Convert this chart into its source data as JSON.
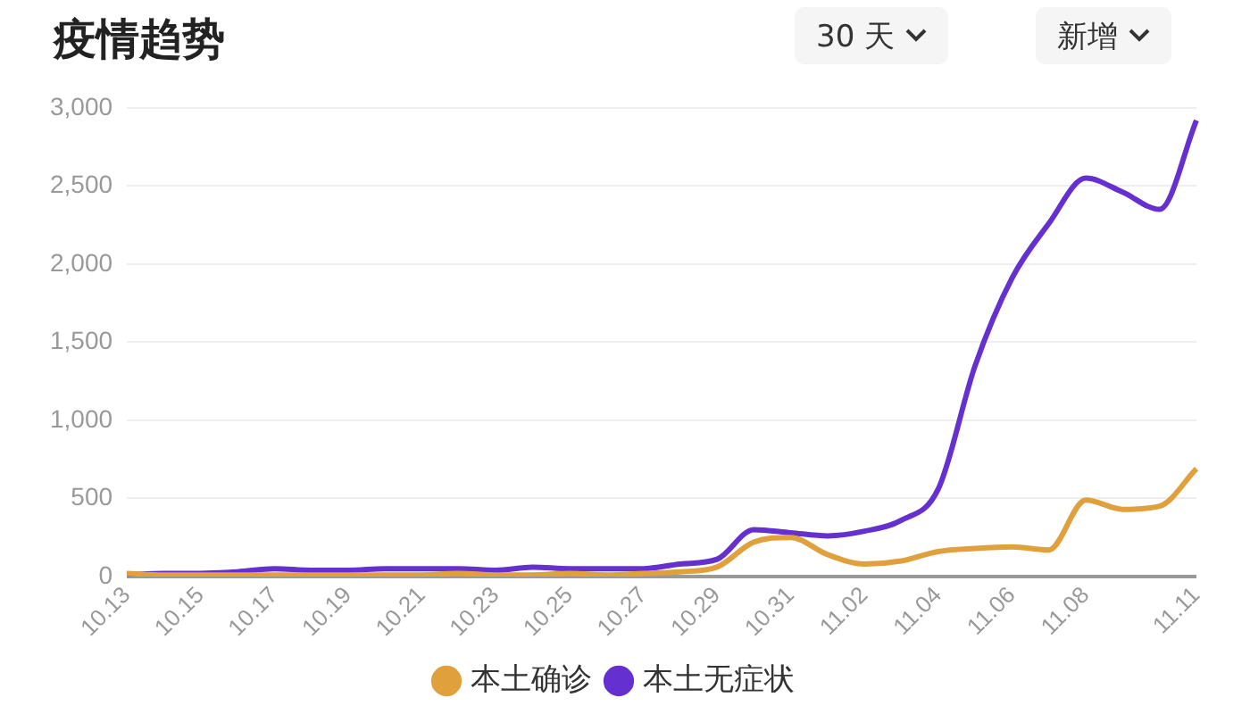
{
  "chart_data": {
    "type": "line",
    "title": "疫情趋势",
    "annotations": [
      "30 天",
      "新增"
    ],
    "categories": [
      "10.13",
      null,
      "10.15",
      null,
      "10.17",
      null,
      "10.19",
      null,
      "10.21",
      null,
      "10.23",
      null,
      "10.25",
      null,
      "10.27",
      null,
      "10.29",
      null,
      "10.31",
      null,
      "11.02",
      null,
      "11.04",
      null,
      "11.06",
      null,
      "11.08",
      null,
      null,
      "11.11"
    ],
    "series": [
      {
        "name": "本土确诊",
        "color": "#e0a03c",
        "values": [
          20,
          10,
          10,
          10,
          10,
          10,
          10,
          10,
          10,
          20,
          10,
          10,
          20,
          10,
          20,
          30,
          60,
          220,
          250,
          140,
          80,
          100,
          160,
          180,
          190,
          170,
          490,
          430,
          450,
          690
        ]
      },
      {
        "name": "本土无症状",
        "color": "#6530d0",
        "values": [
          10,
          20,
          20,
          30,
          50,
          40,
          40,
          50,
          50,
          50,
          40,
          60,
          50,
          50,
          50,
          80,
          110,
          300,
          280,
          260,
          290,
          360,
          560,
          1350,
          1910,
          2260,
          2550,
          2460,
          2350,
          2920
        ]
      }
    ],
    "ylim": [
      0,
      3000
    ],
    "yticks": [
      0,
      500,
      {
        "value": 1000,
        "label": "1,000"
      },
      {
        "value": 1500,
        "label": "1,500"
      },
      {
        "value": 2000,
        "label": "2,000"
      },
      {
        "value": 2500,
        "label": "2,500"
      },
      {
        "value": 3000,
        "label": "3,000"
      }
    ],
    "grid": "y",
    "legend": "bottom",
    "marker": "none",
    "line_style": "solid"
  }
}
